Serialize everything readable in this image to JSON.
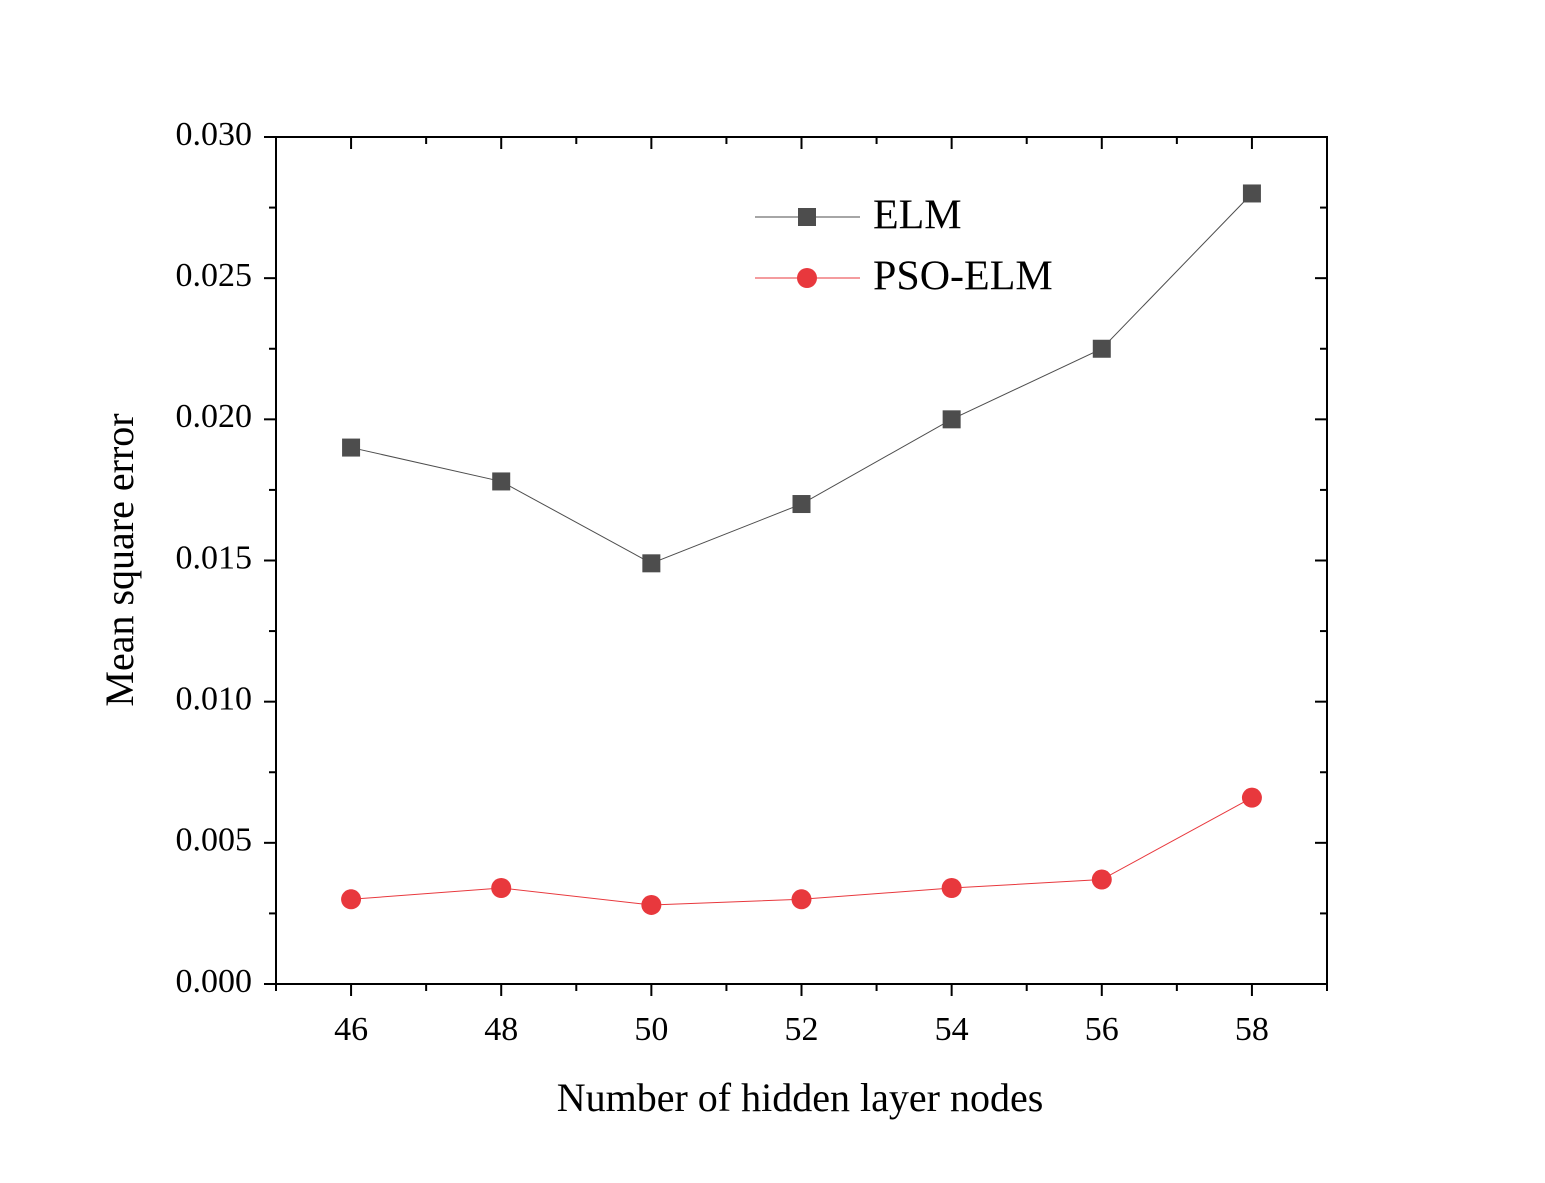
{
  "chart_data": {
    "type": "line",
    "x_label": "Number of hidden layer nodes",
    "y_label": "Mean square error",
    "x": [
      46,
      48,
      50,
      52,
      54,
      56,
      58
    ],
    "series": [
      {
        "name": "ELM",
        "color": "#4d4d4d",
        "marker": "square",
        "values": [
          0.019,
          0.0178,
          0.0149,
          0.017,
          0.02,
          0.0225,
          0.028
        ]
      },
      {
        "name": "PSO-ELM",
        "color": "#e8383d",
        "marker": "circle",
        "values": [
          0.003,
          0.0034,
          0.0028,
          0.003,
          0.0034,
          0.0037,
          0.0066
        ]
      }
    ],
    "xlim": [
      45,
      59
    ],
    "ylim": [
      0,
      0.03
    ],
    "xticks": [
      46,
      48,
      50,
      52,
      54,
      56,
      58
    ],
    "xminorticks": [
      45,
      47,
      49,
      51,
      53,
      55,
      57,
      59
    ],
    "yticks": [
      {
        "value": 0,
        "label": "0.000"
      },
      {
        "value": 0.005,
        "label": "0.005"
      },
      {
        "value": 0.01,
        "label": "0.010"
      },
      {
        "value": 0.015,
        "label": "0.015"
      },
      {
        "value": 0.02,
        "label": "0.020"
      },
      {
        "value": 0.025,
        "label": "0.025"
      },
      {
        "value": 0.03,
        "label": "0.030"
      }
    ],
    "yminorticks": [
      0.0025,
      0.0075,
      0.0125,
      0.0175,
      0.0225,
      0.0275
    ],
    "grid": false,
    "legend": "top"
  }
}
